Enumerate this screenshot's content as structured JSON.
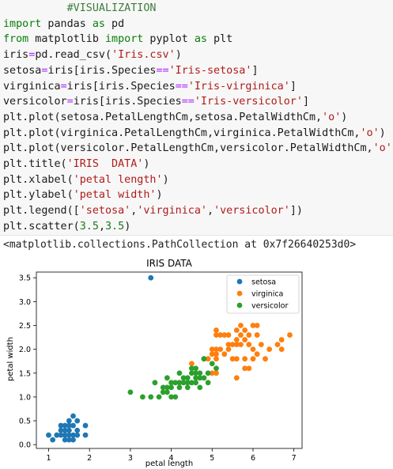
{
  "cell": {
    "lines": [
      [
        {
          "t": "          #VISUALIZATION",
          "c": "cm"
        }
      ],
      [
        {
          "t": "import",
          "c": "kw"
        },
        {
          "t": " pandas "
        },
        {
          "t": "as",
          "c": "kw"
        },
        {
          "t": " pd"
        }
      ],
      [
        {
          "t": "from",
          "c": "kw"
        },
        {
          "t": " matplotlib "
        },
        {
          "t": "import",
          "c": "kw"
        },
        {
          "t": " pyplot "
        },
        {
          "t": "as",
          "c": "kw"
        },
        {
          "t": " plt"
        }
      ],
      [
        {
          "t": "iris"
        },
        {
          "t": "=",
          "c": "op"
        },
        {
          "t": "pd.read_csv("
        },
        {
          "t": "'Iris.csv'",
          "c": "st"
        },
        {
          "t": ")"
        }
      ],
      [
        {
          "t": "setosa"
        },
        {
          "t": "=",
          "c": "op"
        },
        {
          "t": "iris[iris.Species"
        },
        {
          "t": "==",
          "c": "op"
        },
        {
          "t": "'Iris-setosa'",
          "c": "st"
        },
        {
          "t": "]"
        }
      ],
      [
        {
          "t": "virginica"
        },
        {
          "t": "=",
          "c": "op"
        },
        {
          "t": "iris[iris.Species"
        },
        {
          "t": "==",
          "c": "op"
        },
        {
          "t": "'Iris-virginica'",
          "c": "st"
        },
        {
          "t": "]"
        }
      ],
      [
        {
          "t": "versicolor"
        },
        {
          "t": "=",
          "c": "op"
        },
        {
          "t": "iris[iris.Species"
        },
        {
          "t": "==",
          "c": "op"
        },
        {
          "t": "'Iris-versicolor'",
          "c": "st"
        },
        {
          "t": "]"
        }
      ],
      [
        {
          "t": "plt.plot(setosa.PetalLengthCm,setosa.PetalWidthCm,"
        },
        {
          "t": "'o'",
          "c": "st"
        },
        {
          "t": ")"
        }
      ],
      [
        {
          "t": "plt.plot(virginica.PetalLengthCm,virginica.PetalWidthCm,"
        },
        {
          "t": "'o'",
          "c": "st"
        },
        {
          "t": ")"
        }
      ],
      [
        {
          "t": "plt.plot(versicolor.PetalLengthCm,versicolor.PetalWidthCm,"
        },
        {
          "t": "'o'",
          "c": "st"
        },
        {
          "t": ")"
        }
      ],
      [
        {
          "t": "plt.title("
        },
        {
          "t": "'IRIS  DATA'",
          "c": "st"
        },
        {
          "t": ")"
        }
      ],
      [
        {
          "t": "plt.xlabel("
        },
        {
          "t": "'petal length'",
          "c": "st"
        },
        {
          "t": ")"
        }
      ],
      [
        {
          "t": "plt.ylabel("
        },
        {
          "t": "'petal width'",
          "c": "st"
        },
        {
          "t": ")"
        }
      ],
      [
        {
          "t": "plt.legend(["
        },
        {
          "t": "'setosa'",
          "c": "st"
        },
        {
          "t": ","
        },
        {
          "t": "'virginica'",
          "c": "st"
        },
        {
          "t": ","
        },
        {
          "t": "'versicolor'",
          "c": "st"
        },
        {
          "t": "])"
        }
      ],
      [
        {
          "t": "plt.scatter("
        },
        {
          "t": "3.5",
          "c": "nm"
        },
        {
          "t": ","
        },
        {
          "t": "3.5",
          "c": "nm"
        },
        {
          "t": ")"
        }
      ]
    ]
  },
  "output": {
    "text": "<matplotlib.collections.PathCollection at 0x7f26640253d0>"
  },
  "colors": {
    "setosa": "#1f77b4",
    "virginica": "#ff7f0e",
    "versicolor": "#2ca02c"
  },
  "chart_data": {
    "type": "scatter",
    "title": "IRIS  DATA",
    "xlabel": "petal length",
    "ylabel": "petal width",
    "xlim": [
      0.7,
      7.2
    ],
    "ylim": [
      -0.08,
      3.62
    ],
    "xticks": [
      1,
      2,
      3,
      4,
      5,
      6,
      7
    ],
    "yticks": [
      0.0,
      0.5,
      1.0,
      1.5,
      2.0,
      2.5,
      3.0,
      3.5
    ],
    "ytick_labels": [
      "0.0",
      "0.5",
      "1.0",
      "1.5",
      "2.0",
      "2.5",
      "3.0",
      "3.5"
    ],
    "legend_position": "top-right",
    "series": [
      {
        "name": "setosa",
        "color": "#1f77b4",
        "points": [
          [
            1.0,
            0.2
          ],
          [
            1.1,
            0.1
          ],
          [
            1.2,
            0.2
          ],
          [
            1.2,
            0.2
          ],
          [
            1.3,
            0.2
          ],
          [
            1.3,
            0.3
          ],
          [
            1.3,
            0.4
          ],
          [
            1.4,
            0.1
          ],
          [
            1.4,
            0.2
          ],
          [
            1.4,
            0.3
          ],
          [
            1.4,
            0.2
          ],
          [
            1.5,
            0.1
          ],
          [
            1.5,
            0.2
          ],
          [
            1.5,
            0.4
          ],
          [
            1.5,
            0.3
          ],
          [
            1.6,
            0.2
          ],
          [
            1.6,
            0.4
          ],
          [
            1.6,
            0.6
          ],
          [
            1.6,
            0.1
          ],
          [
            1.7,
            0.3
          ],
          [
            1.7,
            0.5
          ],
          [
            1.7,
            0.2
          ],
          [
            1.9,
            0.2
          ],
          [
            1.9,
            0.4
          ],
          [
            1.5,
            0.5
          ],
          [
            1.4,
            0.4
          ]
        ]
      },
      {
        "name": "virginica",
        "color": "#ff7f0e",
        "points": [
          [
            4.5,
            1.7
          ],
          [
            4.8,
            1.8
          ],
          [
            4.9,
            1.8
          ],
          [
            5.0,
            1.5
          ],
          [
            5.0,
            2.0
          ],
          [
            5.0,
            1.9
          ],
          [
            5.1,
            1.5
          ],
          [
            5.1,
            1.8
          ],
          [
            5.1,
            1.9
          ],
          [
            5.1,
            2.0
          ],
          [
            5.1,
            2.3
          ],
          [
            5.1,
            2.4
          ],
          [
            5.2,
            2.0
          ],
          [
            5.2,
            2.3
          ],
          [
            5.3,
            1.9
          ],
          [
            5.3,
            2.3
          ],
          [
            5.4,
            2.1
          ],
          [
            5.4,
            2.3
          ],
          [
            5.5,
            1.8
          ],
          [
            5.5,
            2.1
          ],
          [
            5.6,
            1.8
          ],
          [
            5.6,
            2.1
          ],
          [
            5.6,
            2.2
          ],
          [
            5.6,
            2.4
          ],
          [
            5.6,
            1.4
          ],
          [
            5.7,
            2.1
          ],
          [
            5.7,
            2.3
          ],
          [
            5.7,
            2.5
          ],
          [
            5.8,
            1.6
          ],
          [
            5.8,
            1.8
          ],
          [
            5.8,
            2.2
          ],
          [
            5.9,
            2.1
          ],
          [
            5.9,
            2.3
          ],
          [
            6.0,
            1.8
          ],
          [
            6.0,
            2.5
          ],
          [
            6.1,
            1.9
          ],
          [
            6.1,
            2.3
          ],
          [
            6.1,
            2.5
          ],
          [
            6.3,
            1.8
          ],
          [
            6.4,
            2.0
          ],
          [
            6.6,
            2.1
          ],
          [
            6.7,
            2.0
          ],
          [
            6.7,
            2.2
          ],
          [
            6.9,
            2.3
          ],
          [
            6.0,
            2.0
          ],
          [
            5.4,
            2.0
          ],
          [
            5.8,
            2.4
          ],
          [
            5.9,
            1.6
          ],
          [
            6.2,
            2.1
          ]
        ]
      },
      {
        "name": "versicolor",
        "color": "#2ca02c",
        "points": [
          [
            3.0,
            1.1
          ],
          [
            3.3,
            1.0
          ],
          [
            3.5,
            1.0
          ],
          [
            3.6,
            1.3
          ],
          [
            3.7,
            1.0
          ],
          [
            3.8,
            1.1
          ],
          [
            3.9,
            1.1
          ],
          [
            3.9,
            1.2
          ],
          [
            3.9,
            1.4
          ],
          [
            4.0,
            1.0
          ],
          [
            4.0,
            1.2
          ],
          [
            4.0,
            1.3
          ],
          [
            4.1,
            1.0
          ],
          [
            4.1,
            1.3
          ],
          [
            4.2,
            1.2
          ],
          [
            4.2,
            1.3
          ],
          [
            4.2,
            1.5
          ],
          [
            4.3,
            1.3
          ],
          [
            4.4,
            1.2
          ],
          [
            4.4,
            1.3
          ],
          [
            4.4,
            1.4
          ],
          [
            4.5,
            1.3
          ],
          [
            4.5,
            1.5
          ],
          [
            4.5,
            1.6
          ],
          [
            4.6,
            1.3
          ],
          [
            4.6,
            1.4
          ],
          [
            4.6,
            1.5
          ],
          [
            4.7,
            1.2
          ],
          [
            4.7,
            1.4
          ],
          [
            4.7,
            1.5
          ],
          [
            4.8,
            1.4
          ],
          [
            4.8,
            1.8
          ],
          [
            4.9,
            1.5
          ],
          [
            5.0,
            1.7
          ],
          [
            5.1,
            1.6
          ],
          [
            4.9,
            1.3
          ],
          [
            4.3,
            1.4
          ],
          [
            4.6,
            1.6
          ],
          [
            3.8,
            1.2
          ]
        ]
      },
      {
        "name": "",
        "color": "#1f77b4",
        "points": [
          [
            3.5,
            3.5
          ]
        ]
      }
    ]
  }
}
